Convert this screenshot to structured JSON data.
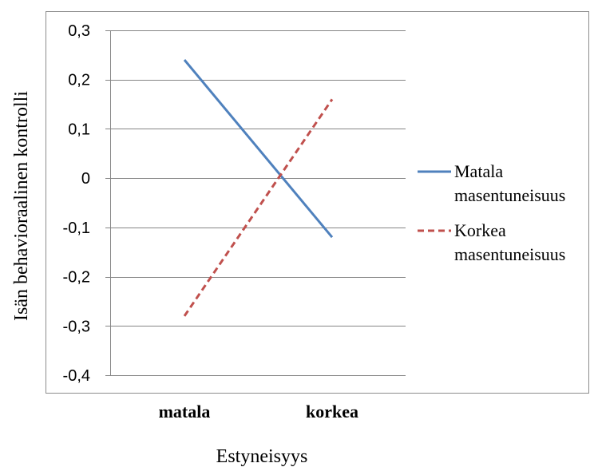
{
  "chart_data": {
    "type": "line",
    "title": "",
    "xlabel": "Estyneisyys",
    "ylabel": "Isän behavioraalinen kontrolli",
    "categories": [
      "matala",
      "korkea"
    ],
    "ylim": [
      -0.4,
      0.3
    ],
    "yticks": [
      0.3,
      0.2,
      0.1,
      0,
      -0.1,
      -0.2,
      -0.3,
      -0.4
    ],
    "ytick_labels": [
      "0,3",
      "0,2",
      "0,1",
      "0",
      "-0,1",
      "-0,2",
      "-0,3",
      "-0,4"
    ],
    "grid": true,
    "legend_position": "right",
    "series": [
      {
        "name": "Matala masentuneisuus",
        "legend_lines": [
          "Matala",
          "masentuneisuus"
        ],
        "values": [
          0.24,
          -0.12
        ],
        "color": "#4F81BD",
        "dash": "solid"
      },
      {
        "name": "Korkea masentuneisuus",
        "legend_lines": [
          "Korkea",
          "masentuneisuus"
        ],
        "values": [
          -0.28,
          0.16
        ],
        "color": "#C0504D",
        "dash": "dashed"
      }
    ]
  }
}
